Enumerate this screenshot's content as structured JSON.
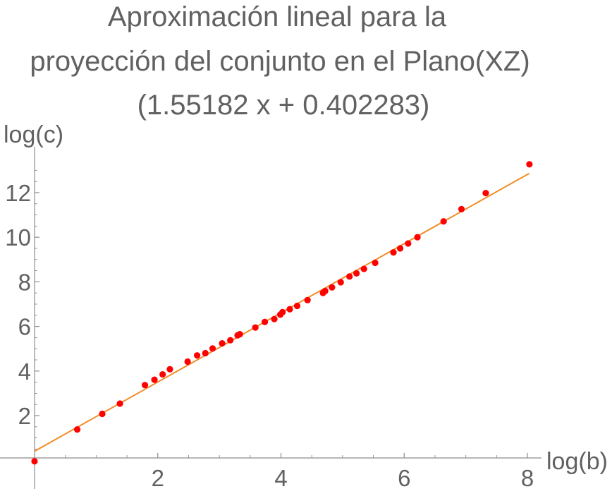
{
  "chart_data": {
    "type": "scatter",
    "title_lines": [
      "Aproximación lineal para la",
      "proyección del conjunto en el Plano(XZ)",
      "(1.55182 x + 0.402283)"
    ],
    "xlabel": "log(b)",
    "ylabel": "log(c)",
    "xlim": [
      0,
      8
    ],
    "ylim": [
      -0.2,
      13.4
    ],
    "x_ticks": [
      2,
      4,
      6,
      8
    ],
    "y_ticks": [
      2,
      4,
      6,
      8,
      10,
      12
    ],
    "x_tick_labels": [
      "2",
      "4",
      "6",
      "8"
    ],
    "y_tick_labels": [
      "2",
      "4",
      "6",
      "8",
      "10",
      "12"
    ],
    "grid": false,
    "fit_line": {
      "slope": 1.55182,
      "intercept": 0.402283,
      "x_range": [
        0,
        8.03
      ],
      "color": "#f28c28"
    },
    "series": [
      {
        "color": "#ff0000",
        "x": [
          0,
          0.693,
          1.099,
          1.386,
          1.792,
          1.946,
          2.079,
          2.197,
          2.485,
          2.639,
          2.773,
          2.89,
          3.045,
          3.178,
          3.296,
          3.332,
          3.584,
          3.738,
          3.892,
          3.989,
          4.025,
          4.143,
          4.263,
          4.431,
          4.682,
          4.718,
          4.828,
          4.97,
          5.112,
          5.226,
          5.347,
          5.529,
          5.826,
          5.935,
          6.064,
          6.215,
          6.64,
          6.93,
          7.324,
          8.033
        ],
        "y": [
          -0.05,
          1.38,
          2.08,
          2.54,
          3.37,
          3.61,
          3.85,
          4.08,
          4.42,
          4.7,
          4.8,
          5.01,
          5.24,
          5.38,
          5.6,
          5.65,
          5.95,
          6.2,
          6.33,
          6.53,
          6.64,
          6.77,
          6.92,
          7.18,
          7.5,
          7.59,
          7.75,
          7.98,
          8.24,
          8.38,
          8.58,
          8.85,
          9.32,
          9.5,
          9.72,
          10.0,
          10.71,
          11.26,
          11.98,
          13.27
        ]
      }
    ]
  }
}
